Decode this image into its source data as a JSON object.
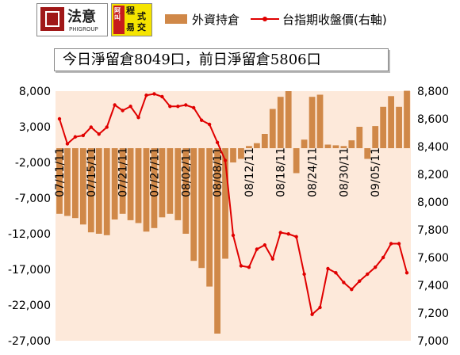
{
  "logos": {
    "logo1_text": "法意",
    "logo1_sub": "PHIGROUP",
    "logo2_text_1": "程",
    "logo2_text_2": "式",
    "logo2_text_3": "交",
    "logo2_text_4": "易",
    "logo2_side": "阿叫"
  },
  "legend": {
    "bar_label": "外資持倉",
    "line_label": "台指期收盤價(右軸)"
  },
  "headline": "今日淨留倉8049口，前日淨留倉5806口",
  "colors": {
    "bar": "#d08848",
    "line": "#e00000",
    "plot_bg": "#fde9da"
  },
  "chart_data": {
    "type": "bar+line",
    "left_axis": {
      "ylim": [
        -27000,
        8000
      ],
      "ticks": [
        "8,000",
        "3,000",
        "-2,000",
        "-7,000",
        "-12,000",
        "-17,000",
        "-22,000",
        "-27,000"
      ]
    },
    "right_axis": {
      "ylim": [
        7000,
        8800
      ],
      "ticks": [
        "8,800",
        "8,600",
        "8,400",
        "8,200",
        "8,000",
        "7,800",
        "7,600",
        "7,400",
        "7,200",
        "7,000"
      ]
    },
    "x_labels": [
      "07/11/11",
      "07/15/11",
      "07/21/11",
      "07/27/11",
      "08/02/11",
      "08/08/11",
      "08/12/11",
      "08/18/11",
      "08/24/11",
      "08/30/11",
      "09/05/11"
    ],
    "label_indices": [
      0,
      4,
      8,
      12,
      16,
      20,
      24,
      28,
      32,
      36,
      40
    ],
    "series": [
      {
        "name": "外資持倉",
        "kind": "bar",
        "values": [
          -9200,
          -9500,
          -9800,
          -10700,
          -11800,
          -12000,
          -12200,
          -10000,
          -9200,
          -10100,
          -10500,
          -11700,
          -11200,
          -9700,
          -9200,
          -10100,
          -12000,
          -15800,
          -16800,
          -19400,
          -26000,
          -15500,
          -2000,
          -1500,
          300,
          700,
          2000,
          5500,
          7200,
          8000,
          -3500,
          1200,
          7200,
          7500,
          500,
          400,
          300,
          1100,
          3000,
          -1500,
          3100,
          5800,
          7300,
          5800,
          8049
        ]
      },
      {
        "name": "台指期收盤價(右軸)",
        "kind": "line",
        "axis": "right",
        "values": [
          8600,
          8420,
          8470,
          8480,
          8540,
          8490,
          8540,
          8700,
          8660,
          8690,
          8610,
          8770,
          8780,
          8760,
          8690,
          8690,
          8700,
          8680,
          8590,
          8560,
          8430,
          8300,
          7760,
          7540,
          7530,
          7660,
          7690,
          7590,
          7780,
          7770,
          7750,
          7480,
          7190,
          7240,
          7520,
          7490,
          7420,
          7370,
          7430,
          7480,
          7530,
          7600,
          7700,
          7700,
          7490
        ]
      }
    ],
    "grid": false
  }
}
